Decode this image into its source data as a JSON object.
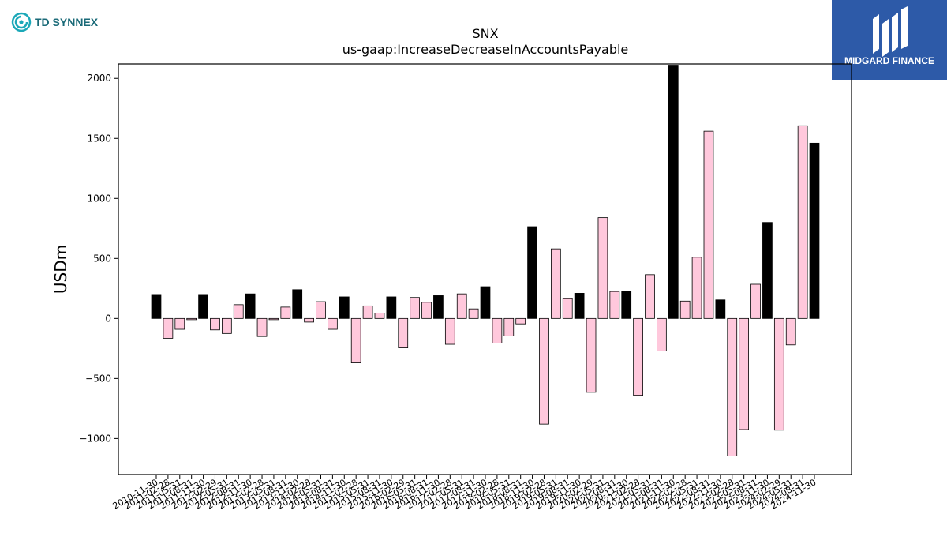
{
  "branding": {
    "left_logo_text": "TD SYNNEX",
    "left_logo_color": "#1a7a8a",
    "right_logo_text": "MIDGARD FINANCE",
    "right_logo_bg": "#2d5aa8"
  },
  "chart_data": {
    "type": "bar",
    "title": "SNX",
    "subtitle": "us-gaap:IncreaseDecreaseInAccountsPayable",
    "xlabel": "",
    "ylabel": "USDm",
    "ylim": [
      -1300,
      2120
    ],
    "yticks": [
      -1000,
      -500,
      0,
      500,
      1000,
      1500,
      2000
    ],
    "ytick_labels": [
      "−1000",
      "−500",
      "0",
      "500",
      "1000",
      "1500",
      "2000"
    ],
    "grid": false,
    "colors": {
      "annual": "#000000",
      "quarterly": "#ffc8dc",
      "edge": "#000000"
    },
    "categories": [
      "2010-11-30",
      "2011-02-28",
      "2011-05-31",
      "2011-08-31",
      "2011-11-30",
      "2012-02-29",
      "2012-05-31",
      "2012-08-31",
      "2012-11-30",
      "2013-02-28",
      "2013-05-31",
      "2013-08-31",
      "2013-11-30",
      "2014-02-28",
      "2014-05-31",
      "2014-08-31",
      "2014-11-30",
      "2015-02-28",
      "2015-05-31",
      "2015-08-31",
      "2015-11-30",
      "2016-02-29",
      "2016-05-31",
      "2016-08-31",
      "2016-11-30",
      "2017-02-28",
      "2017-05-31",
      "2017-08-31",
      "2017-11-30",
      "2018-02-28",
      "2018-05-31",
      "2018-08-31",
      "2018-11-30",
      "2019-02-28",
      "2019-05-31",
      "2019-08-31",
      "2019-11-30",
      "2020-02-29",
      "2020-05-31",
      "2020-08-31",
      "2020-11-30",
      "2021-02-28",
      "2021-05-31",
      "2021-08-31",
      "2021-11-30",
      "2022-02-28",
      "2022-05-31",
      "2022-08-31",
      "2022-11-30",
      "2023-02-28",
      "2023-05-31",
      "2023-08-31",
      "2023-11-30",
      "2024-02-29",
      "2024-05-31",
      "2024-08-31",
      "2024-11-30"
    ],
    "values": [
      200,
      -165,
      -90,
      -10,
      200,
      -95,
      -125,
      115,
      205,
      -150,
      -10,
      95,
      240,
      -30,
      140,
      -90,
      180,
      -370,
      105,
      45,
      180,
      -245,
      175,
      135,
      190,
      -215,
      205,
      80,
      265,
      -205,
      -145,
      -45,
      765,
      -880,
      580,
      165,
      210,
      -615,
      840,
      225,
      225,
      -640,
      365,
      -270,
      2110,
      145,
      510,
      1560,
      155,
      -1145,
      -925,
      285,
      800,
      -930,
      -220,
      1605,
      1460
    ],
    "series_type": [
      "A",
      "Q",
      "Q",
      "Q",
      "A",
      "Q",
      "Q",
      "Q",
      "A",
      "Q",
      "Q",
      "Q",
      "A",
      "Q",
      "Q",
      "Q",
      "A",
      "Q",
      "Q",
      "Q",
      "A",
      "Q",
      "Q",
      "Q",
      "A",
      "Q",
      "Q",
      "Q",
      "A",
      "Q",
      "Q",
      "Q",
      "A",
      "Q",
      "Q",
      "Q",
      "A",
      "Q",
      "Q",
      "Q",
      "A",
      "Q",
      "Q",
      "Q",
      "A",
      "Q",
      "Q",
      "Q",
      "A",
      "Q",
      "Q",
      "Q",
      "A",
      "Q",
      "Q",
      "Q",
      "A"
    ]
  }
}
